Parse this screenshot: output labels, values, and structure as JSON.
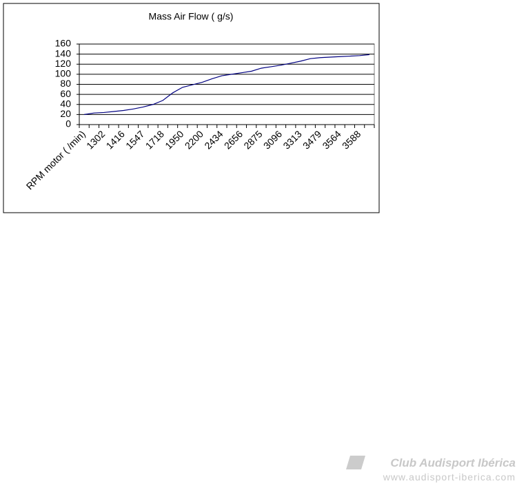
{
  "chart_data": {
    "type": "line",
    "title": "Mass Air Flow ( g/s)",
    "categories": [
      "RPM motor ( /min)",
      null,
      "1302",
      null,
      "1416",
      null,
      "1547",
      null,
      "1718",
      null,
      "1950",
      null,
      "2200",
      null,
      "2434",
      null,
      "2656",
      null,
      "2875",
      null,
      "3096",
      null,
      "3313",
      null,
      "3479",
      null,
      "3564",
      null,
      "3588",
      null
    ],
    "series": [
      {
        "name": "Mass Air Flow",
        "color": "#000080",
        "values": [
          20,
          23,
          24,
          26,
          28,
          31,
          35,
          40,
          48,
          63,
          74,
          79,
          84,
          91,
          97,
          100,
          103,
          106,
          112,
          115,
          118,
          122,
          126,
          131,
          133,
          134,
          135,
          136,
          137,
          139
        ]
      }
    ],
    "ylim": [
      0,
      160
    ],
    "yticks": [
      0,
      20,
      40,
      60,
      80,
      100,
      120,
      140,
      160
    ],
    "grid": true
  },
  "watermark": {
    "brand": "Club Audisport Ibérica",
    "url": "www.audisport-iberica.com"
  }
}
